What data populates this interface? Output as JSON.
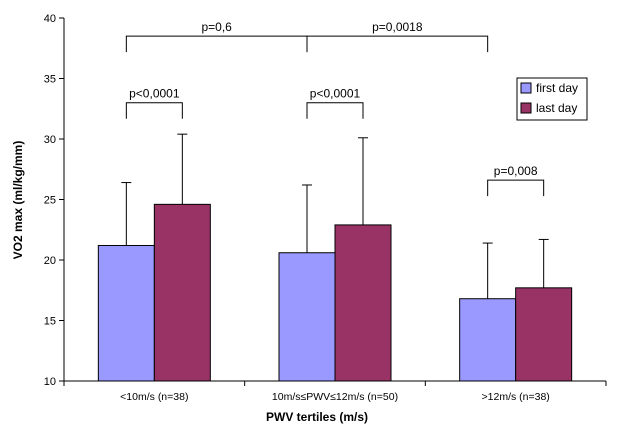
{
  "chart_data": {
    "type": "bar",
    "xlabel": "PWV tertiles (m/s)",
    "ylabel": "VO2 max (ml/kg/mm)",
    "ylim": [
      10,
      40
    ],
    "yticks": [
      10,
      15,
      20,
      25,
      30,
      35,
      40
    ],
    "grid": false,
    "legend_position": "top-right",
    "categories": [
      "<10m/s (n=38)",
      "10m/s≤PWV≤12m/s (n=50)",
      ">12m/s (n=38)"
    ],
    "series": [
      {
        "name": "first day",
        "color": "#9999ff",
        "values": [
          21.2,
          20.6,
          16.8
        ],
        "error": [
          5.2,
          5.6,
          4.6
        ]
      },
      {
        "name": "last day",
        "color": "#993366",
        "values": [
          24.6,
          22.9,
          17.7
        ],
        "error": [
          5.8,
          7.2,
          4.0
        ]
      }
    ],
    "annotations": [
      {
        "label": "p<0,0001",
        "from": [
          0,
          0
        ],
        "to": [
          0,
          1
        ],
        "y": 33
      },
      {
        "label": "p<0,0001",
        "from": [
          1,
          0
        ],
        "to": [
          1,
          1
        ],
        "y": 33
      },
      {
        "label": "p=0,008",
        "from": [
          2,
          0
        ],
        "to": [
          2,
          1
        ],
        "y": 26.6
      },
      {
        "label": "p=0,6",
        "from": [
          0,
          0
        ],
        "to": [
          1,
          0
        ],
        "y": 38.5
      },
      {
        "label": "p=0,0018",
        "from": [
          1,
          0
        ],
        "to": [
          2,
          0
        ],
        "y": 38.5
      }
    ]
  }
}
